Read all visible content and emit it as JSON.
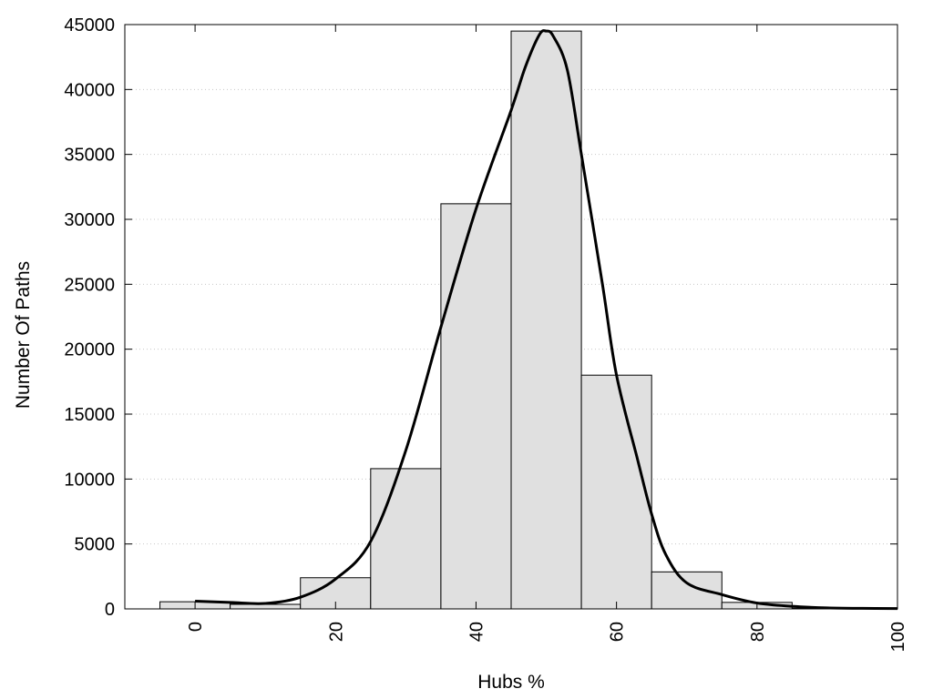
{
  "chart_data": {
    "type": "bar",
    "xlabel": "Hubs %",
    "ylabel": "Number Of Paths",
    "xlim": [
      -10,
      100
    ],
    "ylim": [
      0,
      45000
    ],
    "x_ticks": [
      0,
      20,
      40,
      60,
      80,
      100
    ],
    "y_ticks": [
      0,
      5000,
      10000,
      15000,
      20000,
      25000,
      30000,
      35000,
      40000,
      45000
    ],
    "grid": "horizontal-dotted",
    "bin_width": 10,
    "bars": [
      {
        "center": 0,
        "value": 550
      },
      {
        "center": 10,
        "value": 350
      },
      {
        "center": 20,
        "value": 2400
      },
      {
        "center": 30,
        "value": 10800
      },
      {
        "center": 40,
        "value": 31200
      },
      {
        "center": 50,
        "value": 44500
      },
      {
        "center": 60,
        "value": 18000
      },
      {
        "center": 70,
        "value": 2850
      },
      {
        "center": 80,
        "value": 500
      },
      {
        "center": 90,
        "value": 50
      }
    ],
    "curve": {
      "type": "line",
      "points": [
        [
          0,
          600
        ],
        [
          5,
          500
        ],
        [
          10,
          420
        ],
        [
          15,
          900
        ],
        [
          20,
          2300
        ],
        [
          25,
          5200
        ],
        [
          30,
          12200
        ],
        [
          35,
          21700
        ],
        [
          40,
          30800
        ],
        [
          45,
          38400
        ],
        [
          47,
          41700
        ],
        [
          49,
          44200
        ],
        [
          50,
          44500
        ],
        [
          51,
          44100
        ],
        [
          53,
          41500
        ],
        [
          55,
          35000
        ],
        [
          58,
          25000
        ],
        [
          60,
          18000
        ],
        [
          63,
          11500
        ],
        [
          65,
          7300
        ],
        [
          67,
          4200
        ],
        [
          70,
          2000
        ],
        [
          75,
          1100
        ],
        [
          80,
          450
        ],
        [
          85,
          200
        ],
        [
          90,
          80
        ],
        [
          95,
          40
        ],
        [
          100,
          30
        ]
      ]
    },
    "colors": {
      "bar_fill": "#e0e0e0",
      "bar_stroke": "#000000",
      "curve": "#000000",
      "grid": "#c8c8c8"
    }
  }
}
